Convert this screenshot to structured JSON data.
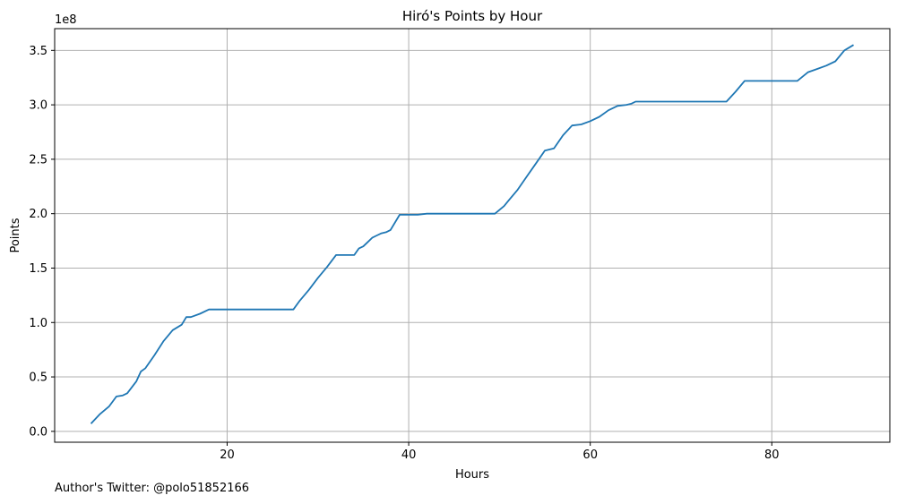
{
  "footnote": "Author's Twitter: @polo51852166",
  "chart_data": {
    "type": "line",
    "title": "Hiró's Points by Hour",
    "xlabel": "Hours",
    "ylabel": "Points",
    "offset_label": "1e8",
    "xlim": [
      1,
      93
    ],
    "ylim": [
      -0.1,
      3.7
    ],
    "x_ticks": [
      20,
      40,
      60,
      80
    ],
    "y_ticks": [
      0.0,
      0.5,
      1.0,
      1.5,
      2.0,
      2.5,
      3.0,
      3.5
    ],
    "y_tick_labels": [
      "0.0",
      "0.5",
      "1.0",
      "1.5",
      "2.0",
      "2.5",
      "3.0",
      "3.5"
    ],
    "grid": true,
    "line_color": "#1f77b4",
    "grid_color": "#b0b0b0",
    "series": [
      {
        "x": [
          5,
          6,
          7,
          7.8,
          8.5,
          9,
          10,
          10.5,
          11,
          12,
          13,
          14,
          15,
          15.5,
          16,
          17,
          18,
          19,
          20,
          25,
          27,
          27.3,
          28,
          29,
          30,
          31,
          32,
          33,
          34,
          34.5,
          35,
          35.5,
          36,
          36.5,
          37,
          37.5,
          38,
          39,
          40,
          41,
          42,
          45,
          47,
          49.5,
          50.5,
          51,
          52,
          53,
          54,
          55,
          56,
          57,
          58,
          59,
          60,
          61,
          62,
          63,
          64,
          64.5,
          65,
          70,
          75,
          76,
          77,
          80,
          82.8,
          84,
          85,
          86,
          87,
          88,
          89
        ],
        "y": [
          0.07,
          0.16,
          0.23,
          0.32,
          0.33,
          0.35,
          0.46,
          0.55,
          0.58,
          0.7,
          0.83,
          0.93,
          0.98,
          1.05,
          1.05,
          1.08,
          1.12,
          1.12,
          1.12,
          1.12,
          1.12,
          1.12,
          1.2,
          1.3,
          1.41,
          1.51,
          1.62,
          1.62,
          1.62,
          1.68,
          1.7,
          1.74,
          1.78,
          1.8,
          1.82,
          1.83,
          1.85,
          1.99,
          1.99,
          1.99,
          2.0,
          2.0,
          2.0,
          2.0,
          2.07,
          2.12,
          2.22,
          2.34,
          2.46,
          2.58,
          2.6,
          2.72,
          2.81,
          2.82,
          2.85,
          2.89,
          2.95,
          2.99,
          3.0,
          3.01,
          3.03,
          3.03,
          3.03,
          3.12,
          3.22,
          3.22,
          3.22,
          3.3,
          3.33,
          3.36,
          3.4,
          3.5,
          3.55
        ]
      }
    ]
  }
}
